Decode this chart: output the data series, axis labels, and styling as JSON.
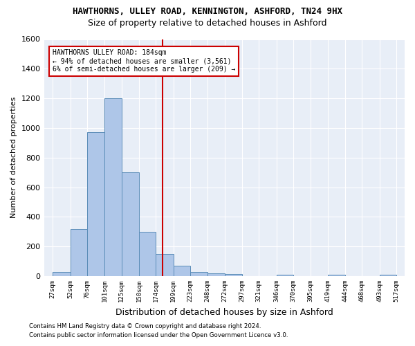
{
  "title": "HAWTHORNS, ULLEY ROAD, KENNINGTON, ASHFORD, TN24 9HX",
  "subtitle": "Size of property relative to detached houses in Ashford",
  "xlabel": "Distribution of detached houses by size in Ashford",
  "ylabel": "Number of detached properties",
  "bar_values": [
    30,
    320,
    970,
    1200,
    700,
    300,
    150,
    70,
    30,
    20,
    15,
    0,
    0,
    10,
    0,
    0,
    10,
    0,
    0,
    10
  ],
  "bin_edges": [
    27,
    52,
    76,
    101,
    125,
    150,
    174,
    199,
    223,
    248,
    272,
    297,
    321,
    346,
    370,
    395,
    419,
    444,
    468,
    493,
    517
  ],
  "bin_labels": [
    "27sqm",
    "52sqm",
    "76sqm",
    "101sqm",
    "125sqm",
    "150sqm",
    "174sqm",
    "199sqm",
    "223sqm",
    "248sqm",
    "272sqm",
    "297sqm",
    "321sqm",
    "346sqm",
    "370sqm",
    "395sqm",
    "419sqm",
    "444sqm",
    "468sqm",
    "493sqm",
    "517sqm"
  ],
  "bar_color": "#aec6e8",
  "bar_edge_color": "#5b8db8",
  "property_sqm": 184,
  "property_line_color": "#cc0000",
  "annotation_text": "HAWTHORNS ULLEY ROAD: 184sqm\n← 94% of detached houses are smaller (3,561)\n6% of semi-detached houses are larger (209) →",
  "annotation_box_color": "#cc0000",
  "ylim": [
    0,
    1600
  ],
  "yticks": [
    0,
    200,
    400,
    600,
    800,
    1000,
    1200,
    1400,
    1600
  ],
  "bg_color": "#e8eef7",
  "footer_line1": "Contains HM Land Registry data © Crown copyright and database right 2024.",
  "footer_line2": "Contains public sector information licensed under the Open Government Licence v3.0."
}
